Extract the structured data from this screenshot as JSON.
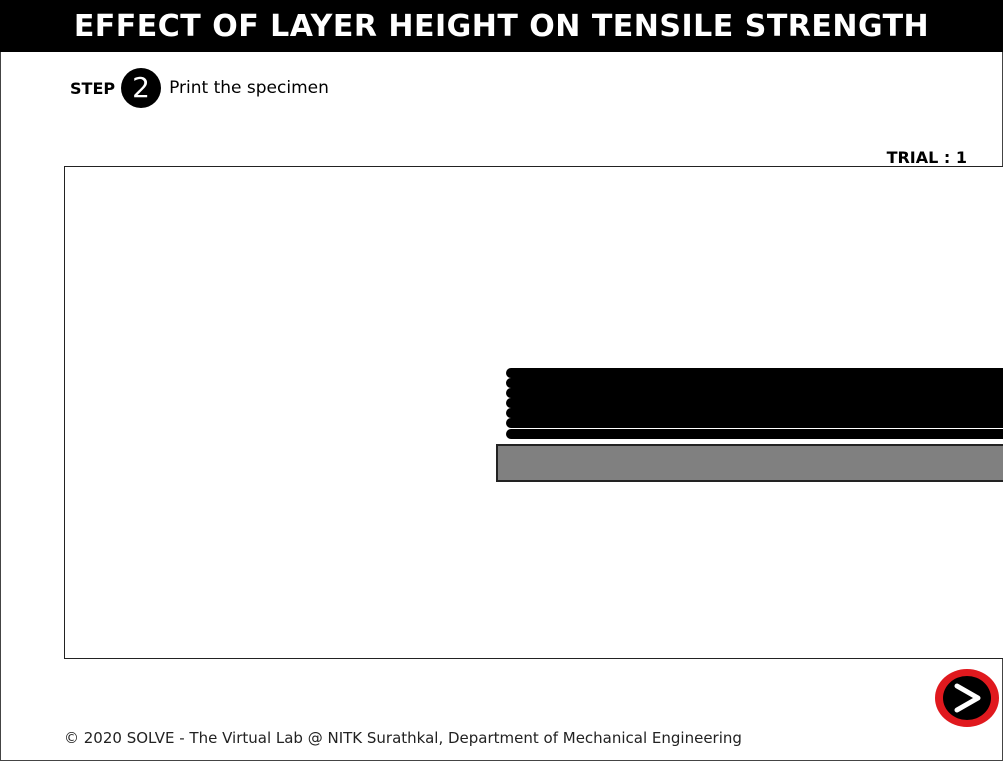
{
  "header": {
    "title": "EFFECT OF LAYER HEIGHT ON TENSILE STRENGTH"
  },
  "step": {
    "label": "STEP",
    "number": "2",
    "text": "Print the specimen"
  },
  "trial": {
    "text": "TRIAL : 1"
  },
  "simulation": {
    "layer_count": 7,
    "colors": {
      "layer": "#000000",
      "bed": "#808080"
    }
  },
  "navigation": {
    "next_icon": "chevron-right-icon",
    "accent": "#e0191e"
  },
  "footer": {
    "text": "© 2020 SOLVE - The Virtual Lab @ NITK Surathkal, Department of Mechanical Engineering"
  }
}
